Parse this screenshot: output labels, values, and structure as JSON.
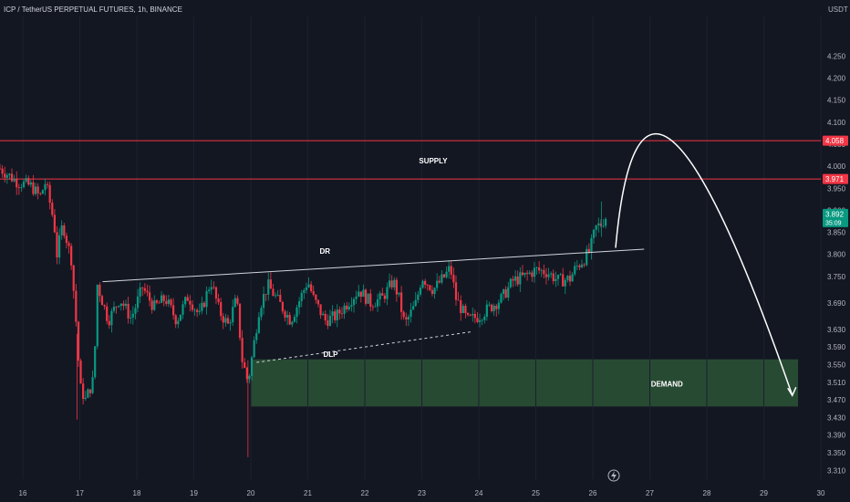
{
  "title": "ICP / TetherUS PERPETUAL FUTURES, 1h, BINANCE",
  "currency": "USDT",
  "chart_data": {
    "type": "candlestick",
    "ylim": [
      3.29,
      4.34
    ],
    "y_ticks": [
      "4.250",
      "4.200",
      "4.150",
      "4.100",
      "4.050",
      "4.000",
      "3.950",
      "3.900",
      "3.850",
      "3.800",
      "3.750",
      "3.690",
      "3.630",
      "3.590",
      "3.550",
      "3.510",
      "3.470",
      "3.430",
      "3.390",
      "3.350",
      "3.310"
    ],
    "x_ticks": [
      "16",
      "17",
      "18",
      "19",
      "20",
      "21",
      "22",
      "23",
      "24",
      "25",
      "26",
      "27",
      "28",
      "29",
      "30"
    ],
    "x_range": [
      15.6,
      30.0
    ],
    "price_labels": [
      {
        "value": "4.058",
        "color": "#f23645"
      },
      {
        "value": "3.971",
        "color": "#f23645"
      },
      {
        "value": "3.892",
        "sub": "35:09",
        "color": "#089981"
      }
    ],
    "levels": [
      {
        "price": 4.058,
        "color": "#f23645"
      },
      {
        "price": 3.971,
        "color": "#f23645"
      }
    ],
    "zones": [
      {
        "label": "DEMAND",
        "x0": 20.0,
        "x1": 29.6,
        "y0": 3.455,
        "y1": 3.562,
        "color": "#2f5c3a"
      }
    ],
    "trendlines": [
      {
        "label": "DR",
        "points": [
          [
            17.4,
            3.738
          ],
          [
            26.9,
            3.812
          ]
        ],
        "color": "#d1d4dc",
        "dash": false
      },
      {
        "label": "DLP",
        "points": [
          [
            20.1,
            3.555
          ],
          [
            23.9,
            3.625
          ]
        ],
        "color": "#d1d4dc",
        "dash": true
      }
    ],
    "annotations": [
      {
        "text": "SUPPLY",
        "x": 23.2,
        "y": 4.007
      },
      {
        "text": "DR",
        "x": 21.3,
        "y": 3.802
      },
      {
        "text": "DLP",
        "x": 21.4,
        "y": 3.568
      },
      {
        "text": "DEMAND",
        "x": 27.3,
        "y": 3.5
      }
    ],
    "projection_arrow": {
      "points": [
        [
          26.4,
          3.815
        ],
        [
          27.4,
          4.015
        ],
        [
          29.5,
          3.48
        ]
      ]
    },
    "candles_up_color": "#089981",
    "candles_down_color": "#f23645",
    "candle_path": [
      [
        15.6,
        3.995
      ],
      [
        15.9,
        3.965
      ],
      [
        16.15,
        3.955
      ],
      [
        16.3,
        3.93
      ],
      [
        16.4,
        3.965
      ],
      [
        16.55,
        3.87
      ],
      [
        16.6,
        3.8
      ],
      [
        16.7,
        3.87
      ],
      [
        16.85,
        3.79
      ],
      [
        16.95,
        3.62
      ],
      [
        17.0,
        3.5
      ],
      [
        17.1,
        3.47
      ],
      [
        17.25,
        3.52
      ],
      [
        17.3,
        3.735
      ],
      [
        17.5,
        3.65
      ],
      [
        17.7,
        3.7
      ],
      [
        17.9,
        3.655
      ],
      [
        18.1,
        3.725
      ],
      [
        18.3,
        3.68
      ],
      [
        18.5,
        3.7
      ],
      [
        18.7,
        3.65
      ],
      [
        18.9,
        3.705
      ],
      [
        19.1,
        3.66
      ],
      [
        19.3,
        3.74
      ],
      [
        19.45,
        3.67
      ],
      [
        19.6,
        3.64
      ],
      [
        19.75,
        3.7
      ],
      [
        19.85,
        3.56
      ],
      [
        19.95,
        3.51
      ],
      [
        20.0,
        3.55
      ],
      [
        20.15,
        3.68
      ],
      [
        20.3,
        3.73
      ],
      [
        20.5,
        3.69
      ],
      [
        20.7,
        3.65
      ],
      [
        20.9,
        3.71
      ],
      [
        21.0,
        3.74
      ],
      [
        21.1,
        3.7
      ],
      [
        21.3,
        3.65
      ],
      [
        21.5,
        3.66
      ],
      [
        21.7,
        3.69
      ],
      [
        21.9,
        3.72
      ],
      [
        22.1,
        3.69
      ],
      [
        22.3,
        3.7
      ],
      [
        22.5,
        3.74
      ],
      [
        22.6,
        3.7
      ],
      [
        22.7,
        3.64
      ],
      [
        22.9,
        3.69
      ],
      [
        23.0,
        3.75
      ],
      [
        23.2,
        3.72
      ],
      [
        23.4,
        3.75
      ],
      [
        23.5,
        3.77
      ],
      [
        23.6,
        3.7
      ],
      [
        23.8,
        3.65
      ],
      [
        24.0,
        3.66
      ],
      [
        24.2,
        3.68
      ],
      [
        24.4,
        3.7
      ],
      [
        24.6,
        3.74
      ],
      [
        24.8,
        3.75
      ],
      [
        25.0,
        3.765
      ],
      [
        25.2,
        3.76
      ],
      [
        25.4,
        3.74
      ],
      [
        25.6,
        3.745
      ],
      [
        25.7,
        3.77
      ],
      [
        25.85,
        3.79
      ],
      [
        25.95,
        3.81
      ],
      [
        26.05,
        3.86
      ],
      [
        26.15,
        3.87
      ],
      [
        26.25,
        3.89
      ]
    ]
  }
}
